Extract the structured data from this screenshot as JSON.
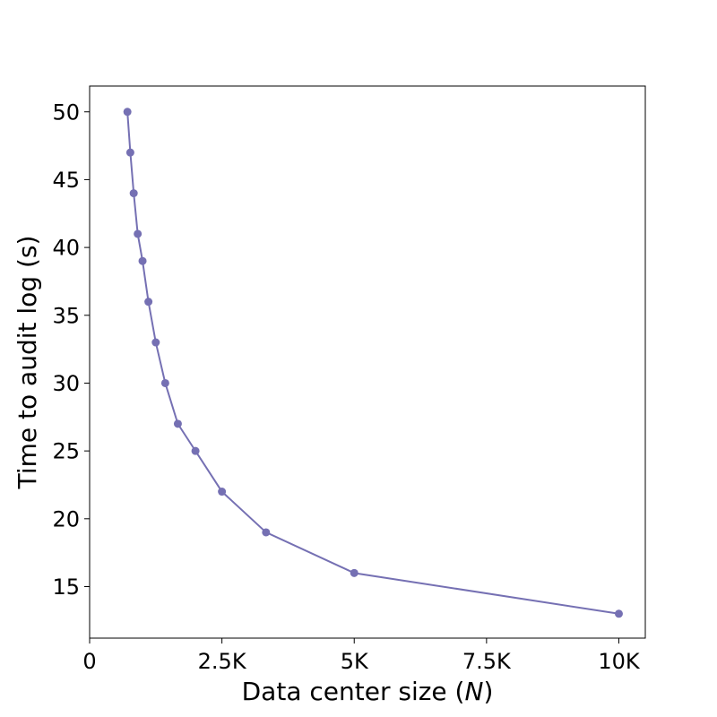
{
  "chart_data": {
    "type": "line",
    "title": "",
    "xlabel": "Data center size (",
    "xlabel_var": "N",
    "xlabel_close": ")",
    "ylabel": "Time to audit log (s)",
    "xlim": [
      0,
      10500
    ],
    "ylim": [
      11.2,
      51.9
    ],
    "x_ticks": [
      {
        "value": 0,
        "label": "0"
      },
      {
        "value": 2500,
        "label": "2.5K"
      },
      {
        "value": 5000,
        "label": "5K"
      },
      {
        "value": 7500,
        "label": "7.5K"
      },
      {
        "value": 10000,
        "label": "10K"
      }
    ],
    "y_ticks": [
      {
        "value": 15,
        "label": "15"
      },
      {
        "value": 20,
        "label": "20"
      },
      {
        "value": 25,
        "label": "25"
      },
      {
        "value": 30,
        "label": "30"
      },
      {
        "value": 35,
        "label": "35"
      },
      {
        "value": 40,
        "label": "40"
      },
      {
        "value": 45,
        "label": "45"
      },
      {
        "value": 50,
        "label": "50"
      }
    ],
    "grid": false,
    "series": [
      {
        "color": "#7570b3",
        "x": [
          714,
          769,
          833,
          909,
          1000,
          1111,
          1250,
          1429,
          1667,
          2000,
          2500,
          3333,
          5000,
          10000
        ],
        "y": [
          50,
          47,
          44,
          41,
          39,
          36,
          33,
          30,
          27,
          25,
          22,
          19,
          16,
          13
        ]
      }
    ]
  }
}
